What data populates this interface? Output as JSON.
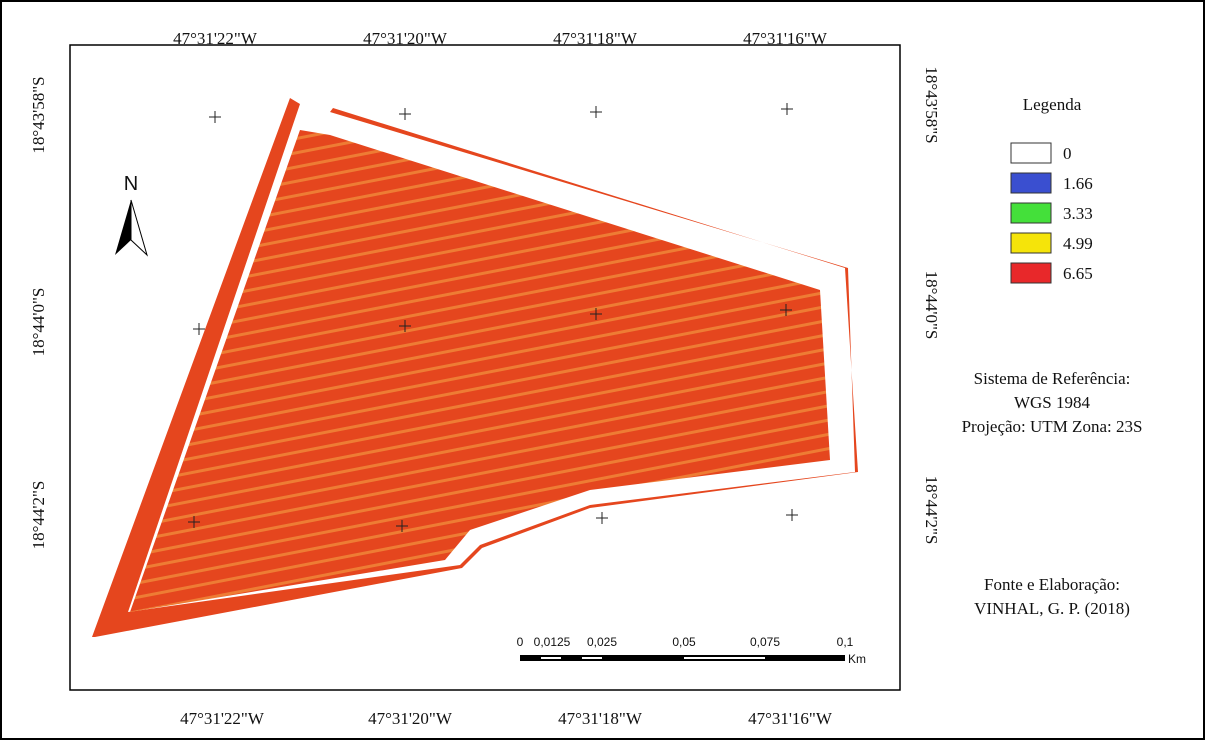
{
  "map": {
    "top_labels": [
      "47°31'22\"W",
      "47°31'20\"W",
      "47°31'18\"W",
      "47°31'16\"W"
    ],
    "bottom_labels": [
      "47°31'22\"W",
      "47°31'20\"W",
      "47°31'18\"W",
      "47°31'16\"W"
    ],
    "left_labels": [
      "18°43'58\"S",
      "18°44'0\"S",
      "18°44'2\"S"
    ],
    "right_labels": [
      "18°43'58\"S",
      "18°44'0\"S",
      "18°44'2\"S"
    ],
    "north": "N",
    "legend": {
      "title": "Legenda",
      "items": [
        {
          "label": "0",
          "color": "#ffffff"
        },
        {
          "label": "1.66",
          "color": "#3a4fd0"
        },
        {
          "label": "3.33",
          "color": "#44e03a"
        },
        {
          "label": "4.99",
          "color": "#f5e40a"
        },
        {
          "label": "6.65",
          "color": "#e8282a"
        }
      ]
    },
    "reference": [
      "Sistema de Referência:",
      "WGS 1984",
      "Projeção: UTM Zona: 23S"
    ],
    "source": [
      "Fonte e Elaboração:",
      "VINHAL, G. P. (2018)"
    ],
    "scale": {
      "labels": [
        "0",
        "0,0125",
        "0,025",
        "0,05",
        "0,075",
        "0,1"
      ],
      "unit": "Km"
    }
  }
}
